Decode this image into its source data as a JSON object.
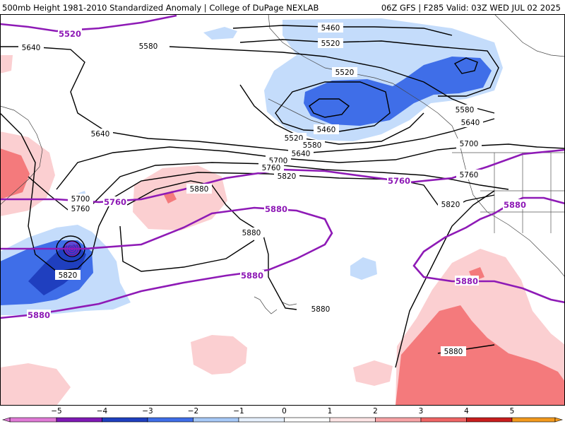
{
  "header": {
    "left_title": "500mb Height 1981-2010 Standardized Anomaly | College of DuPage NEXLAB",
    "right_title": "06Z GFS | F285 Valid: 03Z WED JUL 02 2025"
  },
  "map": {
    "height_contour_color": "#000000",
    "highlight_contour_color": "#8e1ab6",
    "black_contour_labels": [
      "5460",
      "5460",
      "5520",
      "5520",
      "5520",
      "5580",
      "5580",
      "5580",
      "5640",
      "5640",
      "5640",
      "5640",
      "5700",
      "5700",
      "5700",
      "5760",
      "5760",
      "5760",
      "5820",
      "5820",
      "5820",
      "5880",
      "5880",
      "5880",
      "5880"
    ],
    "purple_contour_labels": [
      "5520",
      "5760",
      "5760",
      "5880",
      "5880",
      "5880",
      "5880",
      "5880"
    ],
    "anomaly_colors": {
      "neg5": "#e07ad6",
      "neg4": "#7f19b5",
      "neg3": "#1f3fbf",
      "neg2": "#3f6ee8",
      "neg1": "#c4dcfb",
      "zero": "#ffffff",
      "pos1": "#fbcfd1",
      "pos2": "#f47a7c",
      "pos3": "#de2e2e",
      "pos4": "#b81414",
      "pos5": "#f39a1e"
    }
  },
  "legend": {
    "ticks": [
      "−5",
      "−4",
      "−3",
      "−2",
      "−1",
      "0",
      "1",
      "2",
      "3",
      "4",
      "5"
    ],
    "colors": [
      "#e07ad6",
      "#7f19b5",
      "#1f3fbf",
      "#3f6ee8",
      "#a7c9f7",
      "#e6f0fd",
      "#ffffff",
      "#fde4e5",
      "#f7a3a6",
      "#ef6565",
      "#c81e1e",
      "#f39a1e"
    ]
  }
}
